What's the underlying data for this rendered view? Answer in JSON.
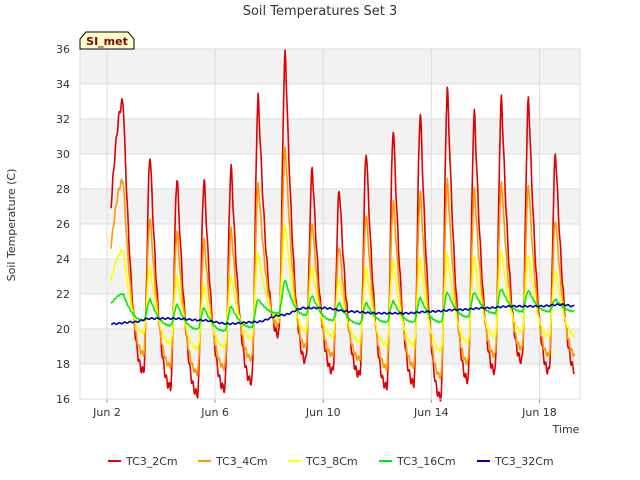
{
  "chart_data": {
    "type": "line",
    "title": "Soil Temperatures Set 3",
    "xlabel": "Time",
    "ylabel": "Soil Temperature (C)",
    "site_badge": "SI_met",
    "ylim": [
      16,
      36
    ],
    "xlim": [
      1.0,
      19.5
    ],
    "y_ticks": [
      16,
      18,
      20,
      22,
      24,
      26,
      28,
      30,
      32,
      34,
      36
    ],
    "x_ticks": [
      {
        "label": "Jun 2",
        "day": 2
      },
      {
        "label": "Jun 6",
        "day": 6
      },
      {
        "label": "Jun 10",
        "day": 10
      },
      {
        "label": "Jun 14",
        "day": 14
      },
      {
        "label": "Jun 18",
        "day": 18
      }
    ],
    "grid": true,
    "banded_background": true,
    "legend_position": "bottom",
    "days": [
      2.6,
      3.6,
      4.6,
      5.6,
      6.6,
      7.6,
      8.6,
      9.6,
      10.6,
      11.6,
      12.6,
      13.6,
      14.6,
      15.6,
      16.6,
      17.6,
      18.6
    ],
    "series": [
      {
        "name": "TC3_2Cm",
        "color": "#e00000",
        "peaks": [
          33.0,
          30.0,
          28.7,
          28.6,
          29.3,
          33.3,
          35.8,
          29.2,
          28.0,
          30.2,
          31.5,
          32.4,
          33.8,
          32.4,
          33.2,
          33.2,
          30.1
        ],
        "troughs": [
          18.9,
          17.6,
          16.7,
          16.3,
          16.6,
          17.0,
          19.7,
          18.2,
          17.6,
          17.4,
          16.7,
          16.9,
          16.1,
          17.1,
          17.6,
          18.2,
          17.6
        ]
      },
      {
        "name": "TC3_4Cm",
        "color": "#ff9900",
        "peaks": [
          28.5,
          26.4,
          25.6,
          25.1,
          25.7,
          28.3,
          30.4,
          26.1,
          24.8,
          26.6,
          27.4,
          27.8,
          28.5,
          28.0,
          28.4,
          28.3,
          26.3
        ],
        "troughs": [
          19.6,
          18.6,
          17.9,
          17.5,
          17.8,
          18.3,
          20.2,
          19.0,
          18.5,
          18.3,
          17.8,
          17.9,
          17.3,
          18.1,
          18.5,
          18.9,
          18.5
        ]
      },
      {
        "name": "TC3_8Cm",
        "color": "#ffff00",
        "peaks": [
          24.5,
          23.5,
          23.0,
          22.5,
          23.0,
          24.4,
          26.0,
          23.6,
          22.9,
          23.5,
          23.9,
          24.0,
          24.3,
          24.2,
          24.5,
          24.3,
          23.4
        ],
        "troughs": [
          20.4,
          19.8,
          19.2,
          18.9,
          19.0,
          19.5,
          20.6,
          19.9,
          19.6,
          19.3,
          19.1,
          19.1,
          18.8,
          19.3,
          19.6,
          19.9,
          19.6
        ]
      },
      {
        "name": "TC3_16Cm",
        "color": "#00ee00",
        "peaks": [
          22.0,
          21.7,
          21.4,
          21.2,
          21.3,
          21.7,
          22.8,
          21.9,
          21.5,
          21.5,
          21.6,
          21.8,
          22.1,
          22.1,
          22.3,
          22.2,
          21.7
        ],
        "troughs": [
          20.7,
          20.5,
          20.2,
          20.0,
          19.9,
          20.1,
          20.9,
          20.8,
          20.5,
          20.3,
          20.4,
          20.4,
          20.4,
          20.7,
          20.9,
          21.0,
          21.0
        ]
      },
      {
        "name": "TC3_32Cm",
        "color": "#0000aa",
        "anchors": [
          [
            2.2,
            20.3
          ],
          [
            3.0,
            20.4
          ],
          [
            3.6,
            20.6
          ],
          [
            4.5,
            20.6
          ],
          [
            5.5,
            20.5
          ],
          [
            6.5,
            20.3
          ],
          [
            7.5,
            20.4
          ],
          [
            8.5,
            20.8
          ],
          [
            9.3,
            21.2
          ],
          [
            10.0,
            21.2
          ],
          [
            11.0,
            21.0
          ],
          [
            12.0,
            20.9
          ],
          [
            13.0,
            20.9
          ],
          [
            14.0,
            21.0
          ],
          [
            15.0,
            21.1
          ],
          [
            16.0,
            21.2
          ],
          [
            17.0,
            21.3
          ],
          [
            18.0,
            21.3
          ],
          [
            18.8,
            21.4
          ],
          [
            19.3,
            21.3
          ]
        ]
      }
    ]
  }
}
